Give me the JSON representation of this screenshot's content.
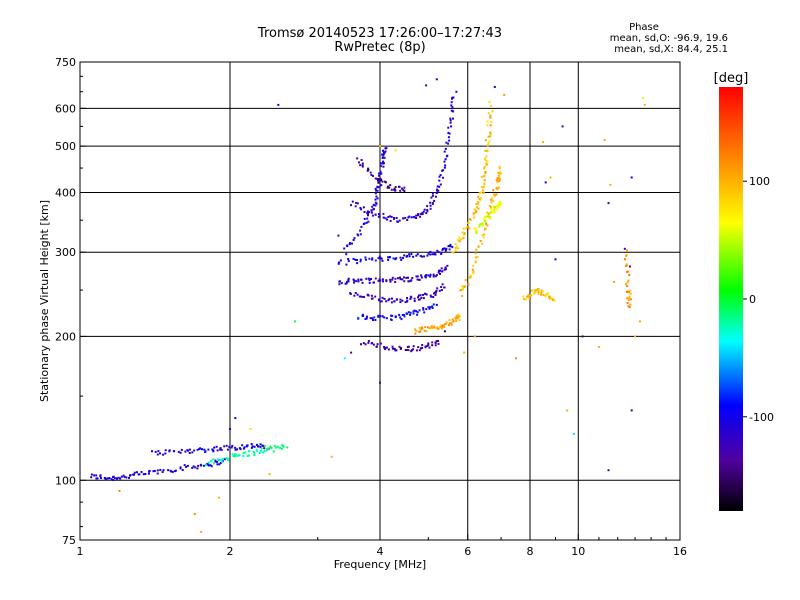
{
  "chart_data": {
    "type": "scatter",
    "title": "Tromsø 20140523 17:26:00–17:27:43",
    "subtitle": "RwPretec (8p)",
    "xlabel": "Frequency [MHz]",
    "ylabel": "Stationary phase Virtual Height [km]",
    "xscale": "log",
    "yscale": "log",
    "xlim": [
      1,
      16
    ],
    "ylim": [
      75,
      750
    ],
    "xticks": [
      1,
      2,
      4,
      6,
      8,
      10,
      16
    ],
    "yticks": [
      75,
      100,
      200,
      300,
      400,
      500,
      600,
      750
    ],
    "grid": true,
    "colorbar": {
      "label": "[deg]",
      "min": -180,
      "max": 180,
      "ticks": [
        100,
        0,
        -100
      ]
    },
    "phase_stats": {
      "heading": "Phase",
      "o_label": "mean, sd,O:",
      "o_values": "-96.9, 19.6",
      "x_label": "mean, sd,X:",
      "x_values": "84.4, 25.1"
    },
    "traces": [
      {
        "points": [
          [
            1.05,
            102
          ],
          [
            1.15,
            101
          ],
          [
            1.25,
            102
          ],
          [
            1.4,
            104
          ],
          [
            1.6,
            106
          ],
          [
            1.8,
            108
          ],
          [
            1.95,
            110
          ]
        ],
        "phase": -110
      },
      {
        "points": [
          [
            1.4,
            114
          ],
          [
            1.6,
            115
          ],
          [
            1.8,
            116
          ],
          [
            2.0,
            117
          ],
          [
            2.2,
            118
          ],
          [
            2.4,
            117
          ]
        ],
        "phase": -105
      },
      {
        "points": [
          [
            1.8,
            108
          ],
          [
            2.0,
            112
          ],
          [
            2.2,
            114
          ],
          [
            2.4,
            116
          ],
          [
            2.6,
            118
          ]
        ],
        "phase": -20
      },
      {
        "points": [
          [
            3.3,
            260
          ],
          [
            3.6,
            262
          ],
          [
            4.0,
            262
          ],
          [
            4.4,
            263
          ],
          [
            4.8,
            265
          ],
          [
            5.2,
            270
          ],
          [
            5.5,
            280
          ]
        ],
        "phase": -115
      },
      {
        "points": [
          [
            3.3,
            285
          ],
          [
            3.8,
            290
          ],
          [
            4.3,
            292
          ],
          [
            4.8,
            295
          ],
          [
            5.3,
            300
          ],
          [
            5.6,
            310
          ]
        ],
        "phase": -100
      },
      {
        "points": [
          [
            3.5,
            245
          ],
          [
            3.9,
            240
          ],
          [
            4.3,
            238
          ],
          [
            4.7,
            240
          ],
          [
            5.1,
            245
          ],
          [
            5.4,
            255
          ]
        ],
        "phase": -120
      },
      {
        "points": [
          [
            3.6,
            220
          ],
          [
            4.0,
            218
          ],
          [
            4.4,
            220
          ],
          [
            4.8,
            225
          ],
          [
            5.2,
            232
          ]
        ],
        "phase": -95
      },
      {
        "points": [
          [
            3.7,
            195
          ],
          [
            4.1,
            190
          ],
          [
            4.5,
            188
          ],
          [
            4.9,
            190
          ],
          [
            5.3,
            195
          ]
        ],
        "phase": -130
      },
      {
        "points": [
          [
            3.4,
            300
          ],
          [
            3.7,
            340
          ],
          [
            3.9,
            380
          ],
          [
            4.0,
            420
          ],
          [
            4.05,
            470
          ],
          [
            4.1,
            500
          ]
        ],
        "phase": -110
      },
      {
        "points": [
          [
            3.5,
            380
          ],
          [
            3.9,
            360
          ],
          [
            4.3,
            350
          ],
          [
            4.7,
            355
          ],
          [
            5.0,
            370
          ],
          [
            5.2,
            400
          ],
          [
            5.4,
            460
          ],
          [
            5.55,
            560
          ],
          [
            5.65,
            650
          ]
        ],
        "phase": -115
      },
      {
        "points": [
          [
            3.6,
            470
          ],
          [
            3.9,
            430
          ],
          [
            4.2,
            410
          ],
          [
            4.5,
            405
          ]
        ],
        "phase": -140
      },
      {
        "points": [
          [
            4.7,
            205
          ],
          [
            5.0,
            207
          ],
          [
            5.3,
            210
          ],
          [
            5.6,
            215
          ],
          [
            5.8,
            220
          ]
        ],
        "phase": 105
      },
      {
        "points": [
          [
            5.8,
            245
          ],
          [
            6.1,
            270
          ],
          [
            6.4,
            320
          ],
          [
            6.7,
            380
          ],
          [
            6.9,
            420
          ],
          [
            7.0,
            450
          ]
        ],
        "phase": 100
      },
      {
        "points": [
          [
            6.2,
            330
          ],
          [
            6.5,
            350
          ],
          [
            6.8,
            370
          ],
          [
            7.0,
            380
          ]
        ],
        "phase": 60
      },
      {
        "points": [
          [
            5.6,
            300
          ],
          [
            5.9,
            330
          ],
          [
            6.2,
            360
          ],
          [
            6.4,
            400
          ],
          [
            6.5,
            450
          ],
          [
            6.6,
            520
          ],
          [
            6.7,
            620
          ]
        ],
        "phase": 95
      },
      {
        "points": [
          [
            7.8,
            240
          ],
          [
            8.2,
            250
          ],
          [
            8.6,
            245
          ],
          [
            9.0,
            240
          ]
        ],
        "phase": 90
      },
      {
        "points": [
          [
            12.5,
            300
          ],
          [
            12.6,
            250
          ],
          [
            12.7,
            230
          ]
        ],
        "phase": 110
      }
    ],
    "scatter": [
      [
        2.5,
        610,
        -110
      ],
      [
        1.2,
        95,
        120
      ],
      [
        1.7,
        85,
        110
      ],
      [
        1.75,
        78,
        100
      ],
      [
        1.9,
        92,
        100
      ],
      [
        2.0,
        128,
        -100
      ],
      [
        2.05,
        135,
        -115
      ],
      [
        2.2,
        128,
        80
      ],
      [
        2.35,
        118,
        10
      ],
      [
        2.4,
        103,
        100
      ],
      [
        2.7,
        215,
        -5
      ],
      [
        3.2,
        112,
        100
      ],
      [
        3.4,
        180,
        -30
      ],
      [
        3.5,
        185,
        -140
      ],
      [
        4.0,
        160,
        -130
      ],
      [
        4.0,
        500,
        110
      ],
      [
        4.3,
        490,
        80
      ],
      [
        5.9,
        185,
        100
      ],
      [
        6.2,
        200,
        110
      ],
      [
        7.5,
        180,
        120
      ],
      [
        8.5,
        510,
        105
      ],
      [
        8.6,
        420,
        -150
      ],
      [
        8.8,
        430,
        100
      ],
      [
        9.0,
        290,
        -110
      ],
      [
        9.3,
        550,
        -130
      ],
      [
        9.5,
        140,
        100
      ],
      [
        9.8,
        125,
        -40
      ],
      [
        11.0,
        190,
        100
      ],
      [
        11.3,
        515,
        100
      ],
      [
        11.5,
        380,
        -120
      ],
      [
        11.5,
        105,
        -140
      ],
      [
        11.6,
        415,
        100
      ],
      [
        11.8,
        260,
        110
      ],
      [
        12.8,
        430,
        -90
      ],
      [
        12.8,
        140,
        -150
      ],
      [
        13.0,
        200,
        100
      ],
      [
        13.3,
        215,
        100
      ],
      [
        13.5,
        630,
        55
      ],
      [
        13.6,
        610,
        100
      ],
      [
        12.4,
        305,
        -110
      ],
      [
        12.7,
        280,
        -140
      ],
      [
        10.2,
        200,
        -150
      ],
      [
        6.8,
        665,
        -110
      ],
      [
        7.1,
        640,
        110
      ],
      [
        5.4,
        205,
        -150
      ],
      [
        5.2,
        690,
        -120
      ],
      [
        4.95,
        670,
        -140
      ],
      [
        3.3,
        325,
        -130
      ]
    ]
  }
}
